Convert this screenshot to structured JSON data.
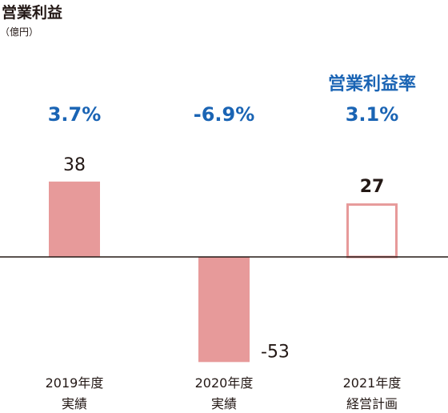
{
  "header": {
    "title": "営業利益",
    "unit": "（億円）"
  },
  "rate_header": "営業利益率",
  "colors": {
    "bar": "#e79a9a",
    "plan_outline": "#e79a9a",
    "rate_text": "#1a64b4",
    "axis": "#231815",
    "text": "#231815"
  },
  "chart_data": {
    "type": "bar",
    "title": "営業利益",
    "ylabel": "（億円）",
    "categories": [
      [
        "2019年度",
        "実績"
      ],
      [
        "2020年度",
        "実績"
      ],
      [
        "2021年度",
        "経営計画"
      ]
    ],
    "values": [
      38,
      -53,
      27
    ],
    "value_labels": [
      "38",
      "-53",
      "27"
    ],
    "rates": [
      "3.7%",
      "-6.9%",
      "3.1%"
    ],
    "bar_styles": [
      "filled",
      "filled",
      "outline"
    ],
    "ylim": [
      -53,
      38
    ],
    "grid": false,
    "legend": "none"
  }
}
